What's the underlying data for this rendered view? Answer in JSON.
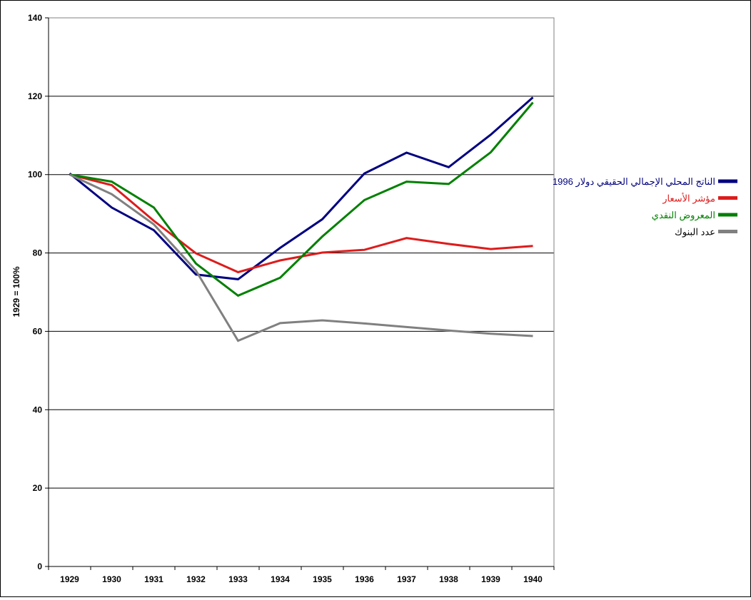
{
  "chart_data": {
    "type": "line",
    "ylabel": "1929 = 100%",
    "xlabel": "",
    "ylim": [
      0,
      140
    ],
    "yticks": [
      0,
      20,
      40,
      60,
      80,
      100,
      120,
      140
    ],
    "categories": [
      "1929",
      "1930",
      "1931",
      "1932",
      "1933",
      "1934",
      "1935",
      "1936",
      "1937",
      "1938",
      "1939",
      "1940"
    ],
    "grid": true,
    "legend_position": "right",
    "series": [
      {
        "name": "الناتج المحلي الإجمالي الحقيقي دولار 1996",
        "color": "#000080",
        "values": [
          100.3,
          91.6,
          85.8,
          74.5,
          73.3,
          81.3,
          88.6,
          100.3,
          105.6,
          101.9,
          110.2,
          119.7
        ]
      },
      {
        "name": "مؤشر الأسعار",
        "color": "#dd1c1c",
        "values": [
          100,
          97.3,
          88.2,
          79.9,
          75.1,
          78.1,
          80.1,
          80.8,
          83.8,
          82.3,
          81,
          81.8
        ]
      },
      {
        "name": "المعروض النقدي",
        "color": "#008000",
        "values": [
          100,
          98.2,
          91.6,
          77.3,
          69.1,
          73.7,
          84.2,
          93.5,
          98.2,
          97.6,
          105.7,
          118.4
        ]
      },
      {
        "name": "عدد البنوك",
        "color": "#808080",
        "values": [
          100,
          95,
          87.3,
          75.5,
          57.6,
          62.1,
          62.8,
          62,
          61.1,
          60.2,
          59.4,
          58.8
        ]
      }
    ]
  }
}
